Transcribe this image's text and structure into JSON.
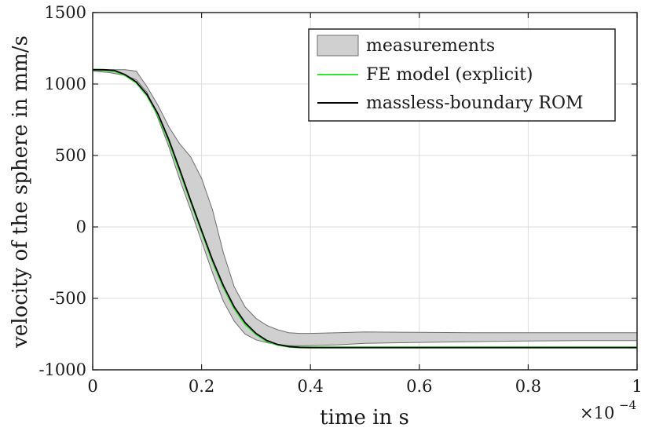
{
  "chart_data": {
    "type": "line",
    "title": "",
    "xlabel": "time in s",
    "ylabel": "velocity of the sphere in mm/s",
    "x_multiplier_label": "×10",
    "x_multiplier_exp": "−4",
    "xlim": [
      0,
      1
    ],
    "ylim": [
      -1000,
      1500
    ],
    "xticks": [
      0,
      0.2,
      0.4,
      0.6,
      0.8,
      1
    ],
    "xtick_labels": [
      "0",
      "0.2",
      "0.4",
      "0.6",
      "0.8",
      "1"
    ],
    "yticks": [
      -1000,
      -500,
      0,
      500,
      1000,
      1500
    ],
    "ytick_labels": [
      "-1000",
      "-500",
      "0",
      "500",
      "1000",
      "1500"
    ],
    "grid": true,
    "legend_position": "top-right",
    "colors": {
      "band_fill": "#d0d0d0",
      "band_edge": "#6e6e6e",
      "fe": "#33e633",
      "rom": "#000000",
      "grid": "#dcdcdc",
      "axis": "#262626"
    },
    "band": {
      "name": "measurements",
      "x": [
        0,
        0.03,
        0.06,
        0.08,
        0.1,
        0.12,
        0.14,
        0.16,
        0.18,
        0.2,
        0.22,
        0.24,
        0.26,
        0.28,
        0.3,
        0.32,
        0.34,
        0.36,
        0.38,
        0.4,
        0.45,
        0.5,
        0.6,
        0.7,
        0.8,
        0.9,
        1.0
      ],
      "upper": [
        1100,
        1100,
        1100,
        1090,
        980,
        850,
        700,
        580,
        490,
        340,
        120,
        -180,
        -420,
        -560,
        -640,
        -690,
        -720,
        -740,
        -745,
        -745,
        -740,
        -735,
        -738,
        -740,
        -740,
        -740,
        -740
      ],
      "lower": [
        1090,
        1080,
        1060,
        1030,
        940,
        760,
        560,
        330,
        120,
        -100,
        -320,
        -520,
        -660,
        -750,
        -790,
        -810,
        -825,
        -830,
        -832,
        -830,
        -825,
        -815,
        -808,
        -803,
        -798,
        -795,
        -795
      ]
    },
    "series": [
      {
        "name": "FE model (explicit)",
        "x": [
          0,
          0.02,
          0.04,
          0.06,
          0.08,
          0.1,
          0.12,
          0.14,
          0.16,
          0.18,
          0.2,
          0.22,
          0.24,
          0.26,
          0.28,
          0.3,
          0.32,
          0.34,
          0.36,
          0.38,
          0.4,
          0.5,
          0.6,
          0.7,
          0.8,
          0.9,
          1.0
        ],
        "values": [
          1100,
          1098,
          1090,
          1060,
          1010,
          920,
          780,
          600,
          390,
          180,
          -30,
          -240,
          -420,
          -570,
          -680,
          -750,
          -800,
          -825,
          -838,
          -843,
          -844,
          -844,
          -844,
          -844,
          -844,
          -844,
          -844
        ]
      },
      {
        "name": "massless-boundary ROM",
        "x": [
          0,
          0.02,
          0.04,
          0.06,
          0.08,
          0.1,
          0.12,
          0.14,
          0.16,
          0.18,
          0.2,
          0.22,
          0.24,
          0.26,
          0.28,
          0.3,
          0.32,
          0.34,
          0.36,
          0.38,
          0.4,
          0.5,
          0.6,
          0.7,
          0.8,
          0.9,
          1.0
        ],
        "values": [
          1100,
          1100,
          1095,
          1065,
          1015,
          925,
          790,
          610,
          400,
          185,
          -25,
          -230,
          -410,
          -560,
          -670,
          -745,
          -795,
          -823,
          -837,
          -843,
          -844,
          -844,
          -844,
          -844,
          -844,
          -844,
          -844
        ]
      }
    ]
  }
}
